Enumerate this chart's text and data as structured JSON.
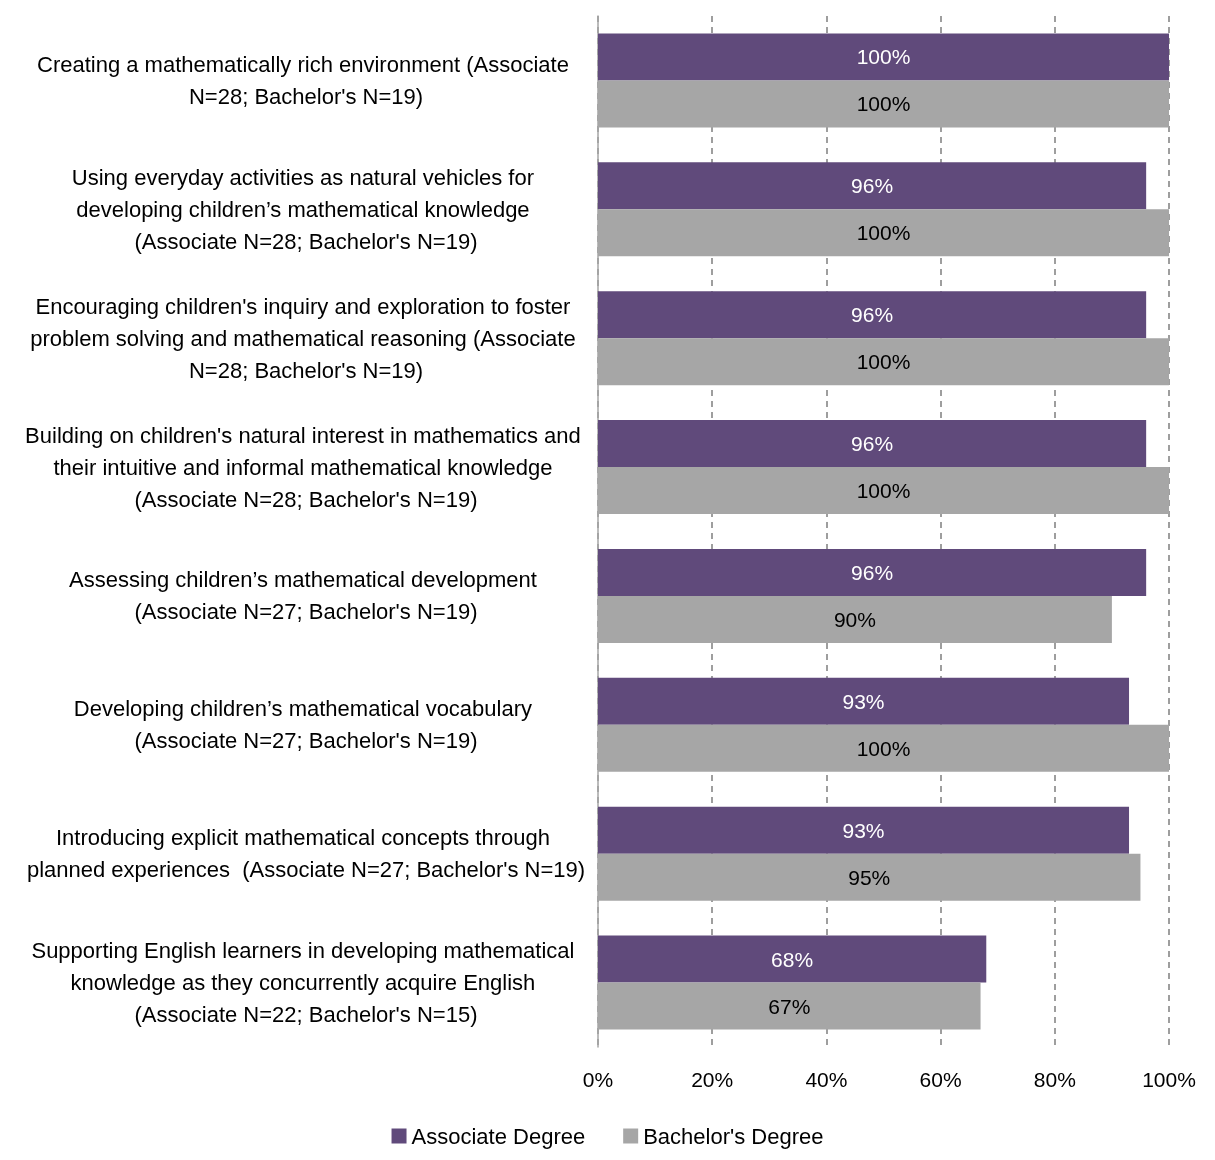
{
  "chart_data": {
    "type": "bar",
    "orientation": "horizontal",
    "categories": [
      "Creating a mathematically rich environment (Associate N=28; Bachelor's N=19)",
      "Using everyday activities as natural vehicles for developing children’s mathematical knowledge (Associate N=28; Bachelor's N=19)",
      "Encouraging children's inquiry and exploration to foster problem solving and mathematical reasoning (Associate N=28; Bachelor's N=19)",
      "Building on children's natural interest in mathematics and their intuitive and informal mathematical knowledge (Associate N=28; Bachelor's N=19)",
      "Assessing children’s mathematical development (Associate N=27; Bachelor's N=19)",
      "Developing children’s mathematical vocabulary (Associate N=27; Bachelor's N=19)",
      "Introducing explicit mathematical concepts through planned experiences  (Associate N=27; Bachelor's N=19)",
      "Supporting English learners in developing mathematical knowledge as they concurrently acquire English (Associate N=22; Bachelor's N=15)"
    ],
    "series": [
      {
        "name": "Associate Degree",
        "color": "#604a7b",
        "values": [
          100,
          96,
          96,
          96,
          96,
          93,
          93,
          68
        ],
        "value_labels": [
          "100%",
          "96%",
          "96%",
          "96%",
          "96%",
          "93%",
          "93%",
          "68%"
        ]
      },
      {
        "name": "Bachelor's Degree",
        "color": "#a6a6a6",
        "values": [
          100,
          100,
          100,
          100,
          90,
          100,
          95,
          67
        ],
        "value_labels": [
          "100%",
          "100%",
          "100%",
          "100%",
          "90%",
          "100%",
          "95%",
          "67%"
        ]
      }
    ],
    "xlim": [
      0,
      100
    ],
    "xticks": [
      {
        "value": 0,
        "label": "0%"
      },
      {
        "value": 20,
        "label": "20%"
      },
      {
        "value": 40,
        "label": "40%"
      },
      {
        "value": 60,
        "label": "60%"
      },
      {
        "value": 80,
        "label": "80%"
      },
      {
        "value": 100,
        "label": "100%"
      }
    ],
    "grid": "x",
    "legend": "bottom"
  }
}
